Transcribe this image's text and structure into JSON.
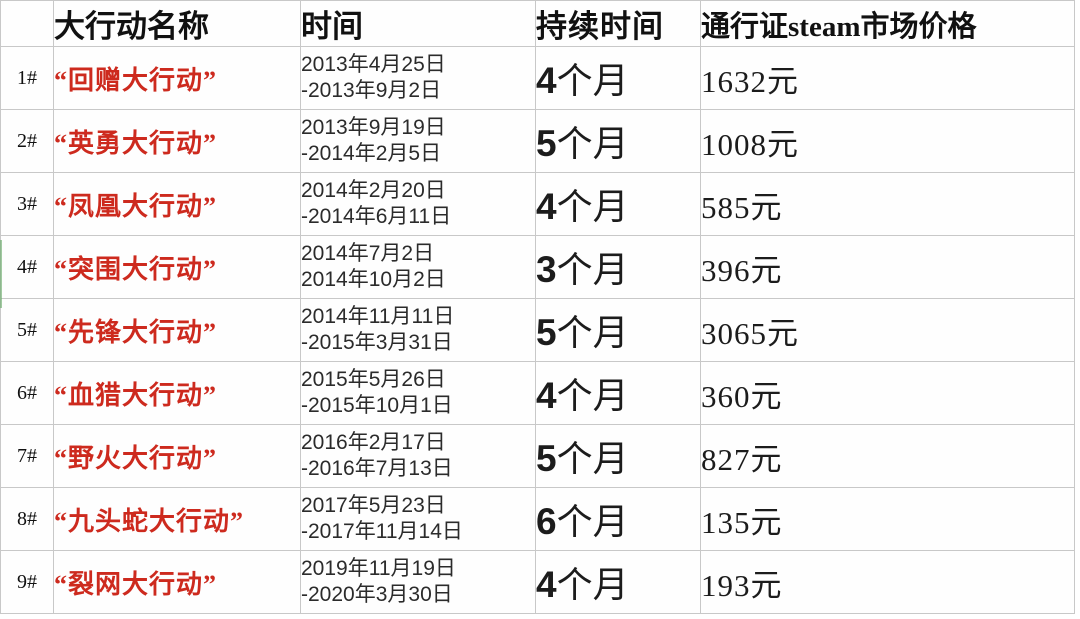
{
  "table": {
    "columns": [
      {
        "key": "index",
        "label": ""
      },
      {
        "key": "name",
        "label": "大行动名称"
      },
      {
        "key": "time",
        "label": "时间"
      },
      {
        "key": "duration",
        "label": "持续时间"
      },
      {
        "key": "price",
        "label": "通行证steam市场价格"
      }
    ],
    "rows": [
      {
        "index": "1#",
        "name": "“回赠大行动”",
        "time_line1": "2013年4月25日",
        "time_line2": "-2013年9月2日",
        "duration_num": "4",
        "duration_unit": "个月",
        "price": "1632元"
      },
      {
        "index": "2#",
        "name": "“英勇大行动”",
        "time_line1": "2013年9月19日",
        "time_line2": "-2014年2月5日",
        "duration_num": "5",
        "duration_unit": "个月",
        "price": "1008元"
      },
      {
        "index": "3#",
        "name": "“凤凰大行动”",
        "time_line1": "2014年2月20日",
        "time_line2": "-2014年6月11日",
        "duration_num": "4",
        "duration_unit": "个月",
        "price": "585元"
      },
      {
        "index": "4#",
        "name": "“突围大行动”",
        "time_line1": "2014年7月2日",
        "time_line2": "2014年10月2日",
        "duration_num": "3",
        "duration_unit": "个月",
        "price": "396元"
      },
      {
        "index": "5#",
        "name": "“先锋大行动”",
        "time_line1": "2014年11月11日",
        "time_line2": "-2015年3月31日",
        "duration_num": "5",
        "duration_unit": "个月",
        "price": "3065元"
      },
      {
        "index": "6#",
        "name": "“血猎大行动”",
        "time_line1": "2015年5月26日",
        "time_line2": "-2015年10月1日",
        "duration_num": "4",
        "duration_unit": "个月",
        "price": "360元"
      },
      {
        "index": "7#",
        "name": "“野火大行动”",
        "time_line1": "2016年2月17日",
        "time_line2": "-2016年7月13日",
        "duration_num": "5",
        "duration_unit": "个月",
        "price": "827元"
      },
      {
        "index": "8#",
        "name": "“九头蛇大行动”",
        "time_line1": "2017年5月23日",
        "time_line2": "-2017年11月14日",
        "duration_num": "6",
        "duration_unit": "个月",
        "price": "135元"
      },
      {
        "index": "9#",
        "name": "“裂网大行动”",
        "time_line1": "2019年11月19日",
        "time_line2": "-2020年3月30日",
        "duration_num": "4",
        "duration_unit": "个月",
        "price": "193元"
      }
    ]
  },
  "colors": {
    "operation_name_red": "#cd2a1e",
    "gridline": "#c8c8c8",
    "text": "#1c1c1c",
    "selection_artifact_green": "#6fae6f"
  }
}
